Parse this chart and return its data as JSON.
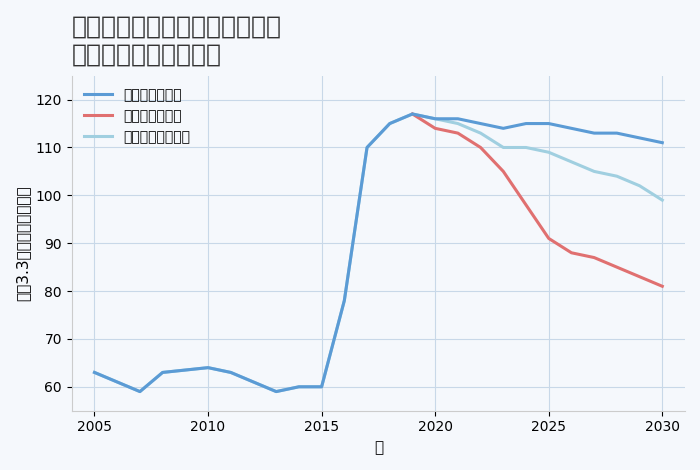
{
  "title": "愛知県名古屋市中村区名西通の\n中古戸建ての価格推移",
  "xlabel": "年",
  "ylabel": "坪（3.3㎡）単価（万円）",
  "background_color": "#f5f8fc",
  "plot_background_color": "#f5f8fc",
  "grid_color": "#c8d8e8",
  "ylim": [
    55,
    125
  ],
  "yticks": [
    60,
    70,
    80,
    90,
    100,
    110,
    120
  ],
  "xlim": [
    2004,
    2031
  ],
  "xticks": [
    2005,
    2010,
    2015,
    2020,
    2025,
    2030
  ],
  "good_scenario": {
    "label": "グッドシナリオ",
    "color": "#5b9bd5",
    "x": [
      2005,
      2007,
      2008,
      2010,
      2011,
      2013,
      2014,
      2015,
      2016,
      2017,
      2018,
      2019,
      2020,
      2021,
      2022,
      2023,
      2024,
      2025,
      2026,
      2027,
      2028,
      2029,
      2030
    ],
    "y": [
      63,
      59,
      63,
      64,
      63,
      59,
      60,
      60,
      78,
      110,
      115,
      117,
      116,
      116,
      115,
      114,
      115,
      115,
      114,
      113,
      113,
      112,
      111
    ]
  },
  "bad_scenario": {
    "label": "バッドシナリオ",
    "color": "#e07070",
    "x": [
      2019,
      2020,
      2021,
      2022,
      2023,
      2024,
      2025,
      2026,
      2027,
      2028,
      2029,
      2030
    ],
    "y": [
      117,
      114,
      113,
      110,
      105,
      98,
      91,
      88,
      87,
      85,
      83,
      81
    ]
  },
  "normal_scenario": {
    "label": "ノーマルシナリオ",
    "color": "#a0cfe0",
    "x": [
      2005,
      2007,
      2008,
      2010,
      2011,
      2013,
      2014,
      2015,
      2016,
      2017,
      2018,
      2019,
      2020,
      2021,
      2022,
      2023,
      2024,
      2025,
      2026,
      2027,
      2028,
      2029,
      2030
    ],
    "y": [
      63,
      59,
      63,
      64,
      63,
      59,
      60,
      60,
      78,
      110,
      115,
      117,
      116,
      115,
      113,
      110,
      110,
      109,
      107,
      105,
      104,
      102,
      99
    ]
  },
  "legend_loc": "upper left",
  "title_fontsize": 18,
  "axis_label_fontsize": 11,
  "tick_fontsize": 10,
  "legend_fontsize": 10,
  "line_width": 2.2
}
